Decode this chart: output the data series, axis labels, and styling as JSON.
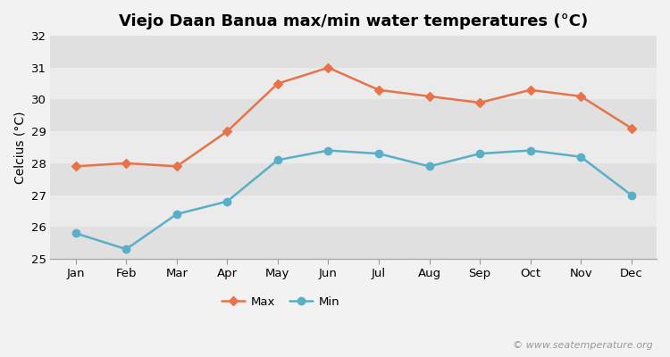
{
  "title": "Viejo Daan Banua max/min water temperatures (°C)",
  "ylabel": "Celcius (°C)",
  "months": [
    "Jan",
    "Feb",
    "Mar",
    "Apr",
    "May",
    "Jun",
    "Jul",
    "Aug",
    "Sep",
    "Oct",
    "Nov",
    "Dec"
  ],
  "max_values": [
    27.9,
    28.0,
    27.9,
    29.0,
    30.5,
    31.0,
    30.3,
    30.1,
    29.9,
    30.3,
    30.1,
    29.1
  ],
  "min_values": [
    25.8,
    25.3,
    26.4,
    26.8,
    28.1,
    28.4,
    28.3,
    27.9,
    28.3,
    28.4,
    28.2,
    27.0
  ],
  "max_color": "#e8734a",
  "min_color": "#5aafc8",
  "bg_color": "#f2f2f2",
  "band_dark": "#e0e0e0",
  "band_light": "#ebebeb",
  "ylim": [
    25,
    32
  ],
  "yticks": [
    25,
    26,
    27,
    28,
    29,
    30,
    31,
    32
  ],
  "legend_max": "Max",
  "legend_min": "Min",
  "watermark": "© www.seatemperature.org",
  "title_fontsize": 13,
  "label_fontsize": 10,
  "tick_fontsize": 9.5,
  "watermark_fontsize": 8
}
